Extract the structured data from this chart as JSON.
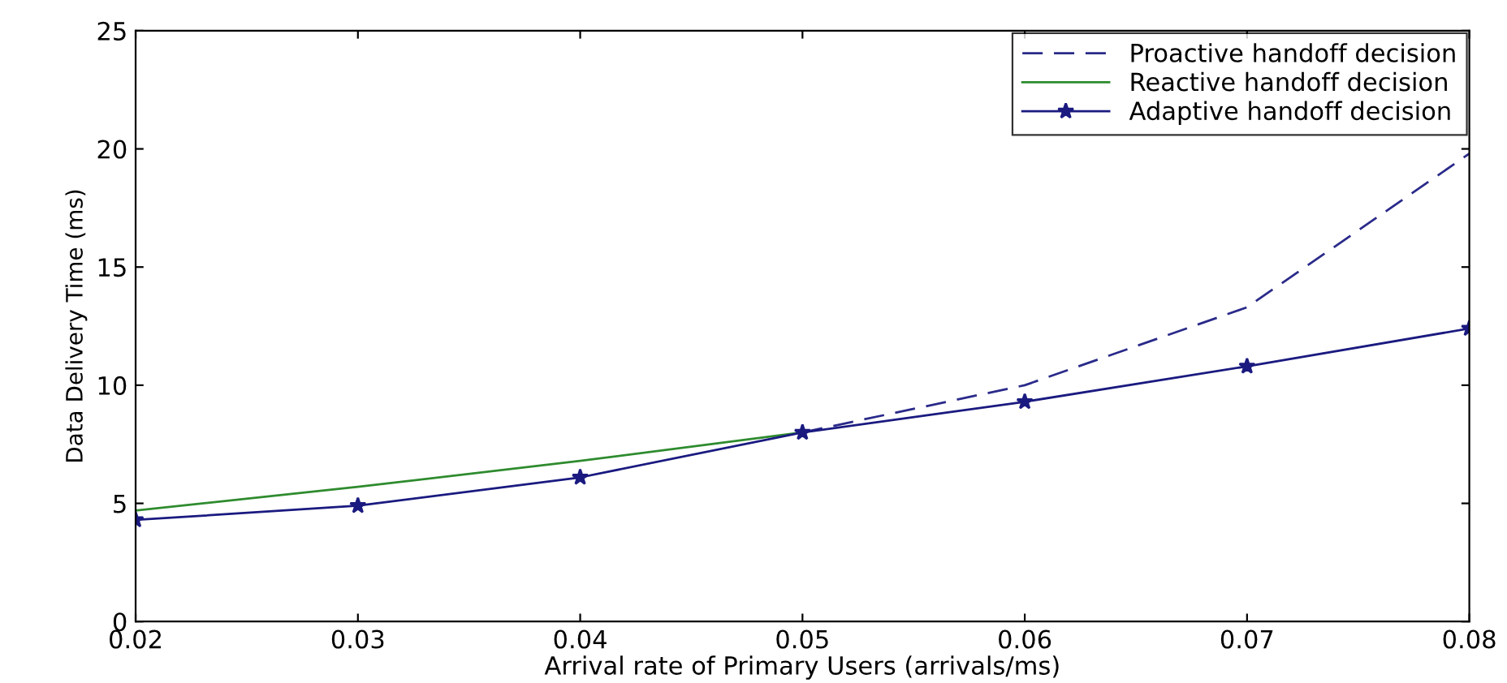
{
  "chart_data": {
    "type": "line",
    "xlabel": "Arrival rate of Primary Users (arrivals/ms)",
    "ylabel": "Data Delivery Time (ms)",
    "x": [
      0.02,
      0.03,
      0.04,
      0.05,
      0.06,
      0.07,
      0.08
    ],
    "series": [
      {
        "name": "Proactive handoff decision",
        "color": "#2a2a8a",
        "line_style": "dashed",
        "marker": "none",
        "values": [
          null,
          null,
          null,
          8.0,
          10.0,
          13.3,
          19.8
        ]
      },
      {
        "name": "Reactive handoff decision",
        "color": "#2e8b2e",
        "line_style": "solid",
        "marker": "none",
        "values": [
          4.7,
          5.7,
          6.8,
          8.0,
          null,
          null,
          null
        ]
      },
      {
        "name": "Adaptive handoff decision",
        "color": "#1a1a80",
        "line_style": "solid",
        "marker": "star",
        "values": [
          4.3,
          4.9,
          6.1,
          8.0,
          9.3,
          10.8,
          12.4
        ]
      }
    ],
    "xlim": [
      0.02,
      0.08
    ],
    "xticks": [
      {
        "value": 0.02,
        "label": "0.02"
      },
      {
        "value": 0.03,
        "label": "0.03"
      },
      {
        "value": 0.04,
        "label": "0.04"
      },
      {
        "value": 0.05,
        "label": "0.05"
      },
      {
        "value": 0.06,
        "label": "0.06"
      },
      {
        "value": 0.07,
        "label": "0.07"
      },
      {
        "value": 0.08,
        "label": "0.08"
      }
    ],
    "ylim": [
      0,
      25
    ],
    "yticks": [
      0,
      5,
      10,
      15,
      20,
      25
    ],
    "grid": false,
    "legend": "top right"
  }
}
